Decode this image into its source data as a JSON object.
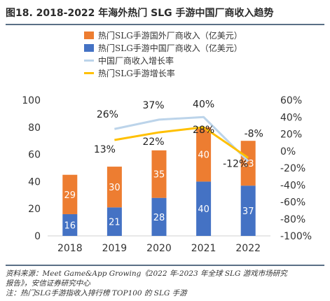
{
  "figure_title": "图18. 2018-2022 年海外热门 SLG 手游中国厂商收入趋势",
  "source_line1": "资料来源：Meet Game&App Growing《2022 年-2023 年全球 SLG 游戏市场研究",
  "source_line2": "报告》，安信证券研究中心",
  "note_line": "注：热门SLG手游指收入排行榜 TOP100 的 SLG 手游",
  "colors": {
    "foreign": "#ed7d31",
    "china": "#4472c4",
    "china_growth": "#bcd4ea",
    "hot_growth": "#ffc000"
  },
  "chart_data": {
    "type": "bar",
    "stacked": true,
    "categories": [
      "2018",
      "2019",
      "2020",
      "2021",
      "2022"
    ],
    "series": [
      {
        "name": "热门SLG手游中国厂商收入（亿美元）",
        "type": "bar",
        "axis": "left",
        "color": "#4472c4",
        "values": [
          16,
          21,
          28,
          40,
          37
        ]
      },
      {
        "name": "热门SLG手游国外厂商收入（亿美元）",
        "type": "bar",
        "axis": "left",
        "color": "#ed7d31",
        "values": [
          29,
          30,
          35,
          40,
          33
        ]
      },
      {
        "name": "中国厂商收入增长率",
        "type": "line",
        "axis": "right",
        "color": "#bcd4ea",
        "values": [
          null,
          26,
          37,
          40,
          -12
        ]
      },
      {
        "name": "热门SLG手游增长率",
        "type": "line",
        "axis": "right",
        "color": "#ffc000",
        "values": [
          null,
          13,
          22,
          28,
          -8
        ]
      }
    ],
    "line_labels": [
      {
        "series": 2,
        "index": 1,
        "text": "26%"
      },
      {
        "series": 2,
        "index": 2,
        "text": "37%"
      },
      {
        "series": 2,
        "index": 3,
        "text": "40%"
      },
      {
        "series": 2,
        "index": 4,
        "text": "-12%"
      },
      {
        "series": 3,
        "index": 1,
        "text": "13%"
      },
      {
        "series": 3,
        "index": 2,
        "text": "22%"
      },
      {
        "series": 3,
        "index": 3,
        "text": "28%"
      },
      {
        "series": 3,
        "index": 4,
        "text": "-8%"
      }
    ],
    "ylim_left": [
      0,
      100
    ],
    "yticks_left": [
      0,
      20,
      40,
      60,
      80,
      100
    ],
    "ylim_right": [
      -100,
      60
    ],
    "yticks_right": [
      "-100%",
      "-80%",
      "-60%",
      "-40%",
      "-20%",
      "0%",
      "20%",
      "40%",
      "60%"
    ],
    "yticks_right_values": [
      -100,
      -80,
      -60,
      -40,
      -20,
      0,
      20,
      40,
      60
    ],
    "legend_order": [
      1,
      0,
      2,
      3
    ],
    "legend_position": "top-center",
    "grid": false
  }
}
